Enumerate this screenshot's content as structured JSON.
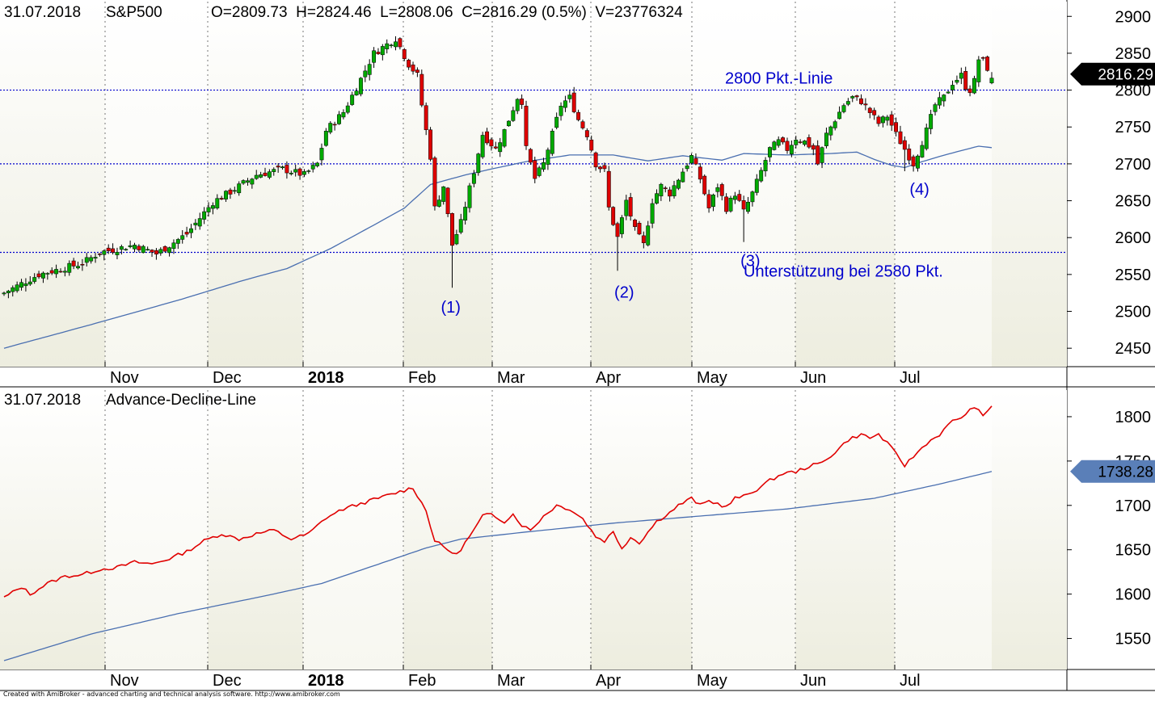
{
  "chart_data": [
    {
      "type": "candlestick",
      "date": "31.07.2018",
      "symbol": "S&P500",
      "ohlcv": "O=2809.73  H=2824.46  L=2808.06  C=2816.29 (0.5%)  V=23776324",
      "ylim": [
        2425,
        2920
      ],
      "yticks": [
        2450,
        2500,
        2550,
        2600,
        2650,
        2700,
        2750,
        2800,
        2850,
        2900
      ],
      "last_value_label": "2816.29",
      "last_value": 2816.29,
      "months": [
        "Nov",
        "Dec",
        "2018",
        "Feb",
        "Mar",
        "Apr",
        "May",
        "Jun",
        "Jul"
      ],
      "hlines": [
        {
          "value": 2800,
          "label": "2800 Pkt.-Linie"
        },
        {
          "value": 2700,
          "label": ""
        },
        {
          "value": 2580,
          "label": "Unterstützung bei 2580 Pkt."
        }
      ],
      "annotations": [
        "(1)",
        "(2)",
        "(3)",
        "(4)"
      ],
      "price_anchors": [
        [
          0,
          2525
        ],
        [
          8,
          2550
        ],
        [
          18,
          2565
        ],
        [
          22,
          2580
        ],
        [
          30,
          2590
        ],
        [
          35,
          2578
        ],
        [
          42,
          2605
        ],
        [
          48,
          2648
        ],
        [
          52,
          2662
        ],
        [
          58,
          2685
        ],
        [
          64,
          2693
        ],
        [
          69,
          2685
        ],
        [
          72,
          2700
        ],
        [
          74,
          2745
        ],
        [
          78,
          2770
        ],
        [
          82,
          2815
        ],
        [
          85,
          2850
        ],
        [
          90,
          2870
        ],
        [
          93,
          2835
        ],
        [
          95,
          2820
        ],
        [
          96,
          2780
        ],
        [
          98,
          2710
        ],
        [
          99,
          2640
        ],
        [
          101,
          2670
        ],
        [
          103,
          2590
        ],
        [
          105,
          2620
        ],
        [
          108,
          2690
        ],
        [
          110,
          2740
        ],
        [
          113,
          2720
        ],
        [
          115,
          2745
        ],
        [
          118,
          2790
        ],
        [
          119,
          2785
        ],
        [
          120,
          2720
        ],
        [
          122,
          2680
        ],
        [
          124,
          2700
        ],
        [
          126,
          2740
        ],
        [
          128,
          2780
        ],
        [
          130,
          2790
        ],
        [
          132,
          2760
        ],
        [
          134,
          2740
        ],
        [
          136,
          2700
        ],
        [
          138,
          2690
        ],
        [
          139,
          2640
        ],
        [
          141,
          2600
        ],
        [
          143,
          2650
        ],
        [
          145,
          2610
        ],
        [
          147,
          2590
        ],
        [
          149,
          2650
        ],
        [
          151,
          2670
        ],
        [
          153,
          2660
        ],
        [
          156,
          2690
        ],
        [
          158,
          2710
        ],
        [
          160,
          2680
        ],
        [
          162,
          2640
        ],
        [
          164,
          2670
        ],
        [
          166,
          2640
        ],
        [
          168,
          2660
        ],
        [
          170,
          2635
        ],
        [
          172,
          2660
        ],
        [
          174,
          2690
        ],
        [
          176,
          2720
        ],
        [
          178,
          2730
        ],
        [
          180,
          2720
        ],
        [
          182,
          2735
        ],
        [
          184,
          2730
        ],
        [
          186,
          2720
        ],
        [
          187,
          2700
        ],
        [
          189,
          2740
        ],
        [
          191,
          2760
        ],
        [
          193,
          2780
        ],
        [
          195,
          2790
        ],
        [
          197,
          2785
        ],
        [
          199,
          2770
        ],
        [
          201,
          2755
        ],
        [
          203,
          2765
        ],
        [
          205,
          2740
        ],
        [
          207,
          2720
        ],
        [
          209,
          2700
        ],
        [
          210,
          2715
        ],
        [
          212,
          2745
        ],
        [
          214,
          2780
        ],
        [
          216,
          2790
        ],
        [
          218,
          2810
        ],
        [
          220,
          2820
        ],
        [
          221,
          2805
        ],
        [
          222,
          2800
        ],
        [
          223,
          2812
        ],
        [
          224,
          2842
        ],
        [
          225,
          2840
        ],
        [
          226,
          2830
        ],
        [
          227,
          2816.29
        ]
      ],
      "sma_anchors": [
        [
          0,
          2450
        ],
        [
          20,
          2482
        ],
        [
          40,
          2515
        ],
        [
          55,
          2542
        ],
        [
          65,
          2558
        ],
        [
          75,
          2585
        ],
        [
          85,
          2617
        ],
        [
          92,
          2640
        ],
        [
          98,
          2672
        ],
        [
          106,
          2685
        ],
        [
          112,
          2693
        ],
        [
          120,
          2703
        ],
        [
          130,
          2712
        ],
        [
          140,
          2712
        ],
        [
          148,
          2704
        ],
        [
          156,
          2711
        ],
        [
          165,
          2705
        ],
        [
          170,
          2714
        ],
        [
          180,
          2712
        ],
        [
          190,
          2714
        ],
        [
          196,
          2716
        ],
        [
          200,
          2706
        ],
        [
          204,
          2698
        ],
        [
          207,
          2695
        ],
        [
          211,
          2703
        ],
        [
          215,
          2710
        ],
        [
          220,
          2718
        ],
        [
          224,
          2724
        ],
        [
          227,
          2722
        ]
      ]
    },
    {
      "type": "line",
      "date": "31.07.2018",
      "title": "Advance-Decline-Line",
      "ylim": [
        1515,
        1830
      ],
      "yticks": [
        1550,
        1600,
        1650,
        1700,
        1750,
        1800
      ],
      "last_value_label": "1738.28",
      "last_value": 1738.28,
      "months": [
        "Nov",
        "Dec",
        "2018",
        "Feb",
        "Mar",
        "Apr",
        "May",
        "Jun",
        "Jul"
      ],
      "adl_anchors": [
        [
          0,
          1596
        ],
        [
          4,
          1608
        ],
        [
          6,
          1600
        ],
        [
          10,
          1612
        ],
        [
          14,
          1620
        ],
        [
          18,
          1622
        ],
        [
          22,
          1628
        ],
        [
          26,
          1630
        ],
        [
          30,
          1636
        ],
        [
          34,
          1634
        ],
        [
          38,
          1640
        ],
        [
          42,
          1648
        ],
        [
          46,
          1660
        ],
        [
          50,
          1668
        ],
        [
          54,
          1662
        ],
        [
          58,
          1668
        ],
        [
          62,
          1672
        ],
        [
          66,
          1662
        ],
        [
          70,
          1668
        ],
        [
          74,
          1686
        ],
        [
          78,
          1696
        ],
        [
          82,
          1702
        ],
        [
          86,
          1708
        ],
        [
          90,
          1714
        ],
        [
          94,
          1720
        ],
        [
          97,
          1694
        ],
        [
          99,
          1660
        ],
        [
          102,
          1650
        ],
        [
          104,
          1644
        ],
        [
          106,
          1658
        ],
        [
          108,
          1672
        ],
        [
          110,
          1688
        ],
        [
          112,
          1690
        ],
        [
          115,
          1682
        ],
        [
          117,
          1690
        ],
        [
          119,
          1678
        ],
        [
          121,
          1672
        ],
        [
          124,
          1688
        ],
        [
          127,
          1700
        ],
        [
          130,
          1696
        ],
        [
          133,
          1685
        ],
        [
          136,
          1665
        ],
        [
          138,
          1660
        ],
        [
          140,
          1670
        ],
        [
          142,
          1652
        ],
        [
          144,
          1664
        ],
        [
          146,
          1658
        ],
        [
          148,
          1670
        ],
        [
          150,
          1682
        ],
        [
          153,
          1692
        ],
        [
          155,
          1700
        ],
        [
          158,
          1708
        ],
        [
          160,
          1700
        ],
        [
          162,
          1705
        ],
        [
          164,
          1702
        ],
        [
          166,
          1698
        ],
        [
          168,
          1708
        ],
        [
          170,
          1710
        ],
        [
          173,
          1718
        ],
        [
          176,
          1728
        ],
        [
          179,
          1736
        ],
        [
          182,
          1738
        ],
        [
          185,
          1744
        ],
        [
          188,
          1748
        ],
        [
          191,
          1760
        ],
        [
          194,
          1774
        ],
        [
          197,
          1780
        ],
        [
          199,
          1776
        ],
        [
          201,
          1780
        ],
        [
          203,
          1770
        ],
        [
          205,
          1758
        ],
        [
          207,
          1745
        ],
        [
          209,
          1755
        ],
        [
          212,
          1770
        ],
        [
          215,
          1780
        ],
        [
          218,
          1795
        ],
        [
          221,
          1802
        ],
        [
          223,
          1812
        ],
        [
          225,
          1800
        ],
        [
          227,
          1812
        ]
      ],
      "sma_anchors": [
        [
          0,
          1525
        ],
        [
          20,
          1555
        ],
        [
          40,
          1578
        ],
        [
          60,
          1598
        ],
        [
          73,
          1612
        ],
        [
          85,
          1632
        ],
        [
          97,
          1652
        ],
        [
          105,
          1662
        ],
        [
          120,
          1670
        ],
        [
          140,
          1680
        ],
        [
          160,
          1688
        ],
        [
          180,
          1696
        ],
        [
          200,
          1708
        ],
        [
          215,
          1724
        ],
        [
          227,
          1738.28
        ]
      ]
    }
  ],
  "footer": "Created with AmiBroker - advanced charting and technical analysis software. http://www.amibroker.com",
  "colors": {
    "up": "#00aa00",
    "down": "#dd0000",
    "sma": "#4a6fb0",
    "adl": "#e00000",
    "hline": "#0000cc",
    "annotation": "#0000cc",
    "marker": "#000000",
    "adl_marker": "#5a7fb8",
    "band_light": "#f7f7f0",
    "band_dark": "#ededdf"
  }
}
